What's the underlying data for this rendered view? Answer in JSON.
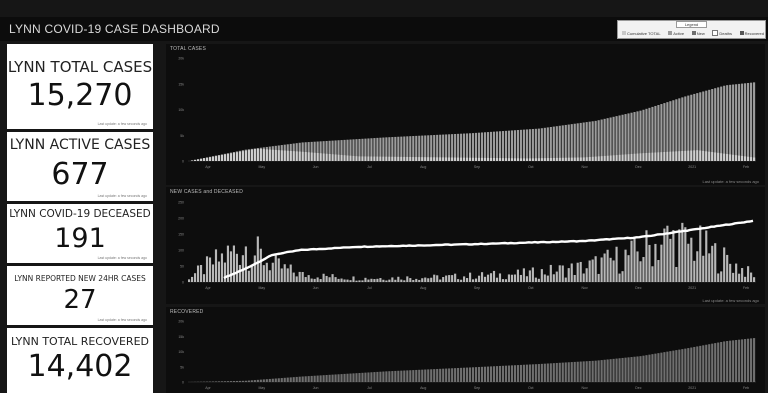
{
  "app": {
    "title": "LYNN COVID-19 CASE DASHBOARD"
  },
  "legend": {
    "title": "Legend",
    "items": [
      {
        "label": "Cumulative TOTAL",
        "color": "#c8c8c8"
      },
      {
        "label": "Active",
        "color": "#9a9a9a"
      },
      {
        "label": "New",
        "color": "#6e6e6e"
      },
      {
        "label": "Deaths",
        "color": "#ffffff"
      },
      {
        "label": "Recovered",
        "color": "#555555"
      }
    ]
  },
  "kpis": [
    {
      "label": "LYNN TOTAL CASES",
      "value": "15,270",
      "footnote": "Last update: a few seconds ago"
    },
    {
      "label": "LYNN ACTIVE CASES",
      "value": "677",
      "footnote": "Last update: a few seconds ago"
    },
    {
      "label": "LYNN COVID-19 DECEASED",
      "value": "191",
      "footnote": "Last update: a few seconds ago"
    },
    {
      "label": "LYNN REPORTED NEW 24HR CASES",
      "value": "27",
      "footnote": "Last update: a few seconds ago"
    },
    {
      "label": "LYNN TOTAL RECOVERED",
      "value": "14,402",
      "footnote": ""
    }
  ],
  "panels": [
    {
      "title": "TOTAL CASES",
      "footnote": "Last update: a few seconds ago"
    },
    {
      "title": "NEW CASES and DECEASED",
      "footnote": "Last update: a few seconds ago"
    },
    {
      "title": "RECOVERED",
      "footnote": ""
    }
  ],
  "chart_data": [
    {
      "type": "bar",
      "title": "TOTAL CASES",
      "x_ticks": [
        "Apr",
        "May",
        "Jun",
        "Jul",
        "Aug",
        "Sep",
        "Oct",
        "Nov",
        "Dec",
        "2021",
        "Feb"
      ],
      "y_ticks": [
        "0",
        "5k",
        "10k",
        "15k",
        "20k"
      ],
      "ylim": [
        0,
        20000
      ],
      "series": [
        {
          "name": "Cumulative TOTAL",
          "knots": [
            [
              0,
              0
            ],
            [
              0.1,
              2200
            ],
            [
              0.2,
              3600
            ],
            [
              0.35,
              4600
            ],
            [
              0.5,
              5400
            ],
            [
              0.62,
              6300
            ],
            [
              0.72,
              7800
            ],
            [
              0.8,
              9800
            ],
            [
              0.88,
              12600
            ],
            [
              0.95,
              14700
            ],
            [
              1.0,
              15270
            ]
          ]
        },
        {
          "name": "Active",
          "knots": [
            [
              0,
              0
            ],
            [
              0.12,
              2400
            ],
            [
              0.2,
              1800
            ],
            [
              0.3,
              900
            ],
            [
              0.45,
              700
            ],
            [
              0.6,
              500
            ],
            [
              0.7,
              700
            ],
            [
              0.8,
              1500
            ],
            [
              0.9,
              2100
            ],
            [
              1.0,
              677
            ]
          ]
        }
      ],
      "grid": false
    },
    {
      "type": "bar",
      "title": "NEW CASES and DECEASED",
      "x_ticks": [
        "Apr",
        "May",
        "Jun",
        "Jul",
        "Aug",
        "Sep",
        "Oct",
        "Nov",
        "Dec",
        "2021",
        "Feb"
      ],
      "y_ticks": [
        "0",
        "50",
        "100",
        "150",
        "200",
        "250"
      ],
      "ylim": [
        0,
        250
      ],
      "series": [
        {
          "name": "New",
          "knots": [
            [
              0,
              20
            ],
            [
              0.05,
              90
            ],
            [
              0.1,
              150
            ],
            [
              0.15,
              70
            ],
            [
              0.2,
              30
            ],
            [
              0.3,
              15
            ],
            [
              0.45,
              20
            ],
            [
              0.6,
              35
            ],
            [
              0.7,
              60
            ],
            [
              0.78,
              110
            ],
            [
              0.85,
              180
            ],
            [
              0.9,
              150
            ],
            [
              0.95,
              90
            ],
            [
              1.0,
              27
            ]
          ]
        },
        {
          "name": "Deaths",
          "knots": [
            [
              0.06,
              10
            ],
            [
              0.1,
              40
            ],
            [
              0.15,
              85
            ],
            [
              0.2,
              100
            ],
            [
              0.3,
              110
            ],
            [
              0.5,
              118
            ],
            [
              0.7,
              128
            ],
            [
              0.8,
              140
            ],
            [
              0.9,
              165
            ],
            [
              1.0,
              191
            ]
          ]
        }
      ],
      "grid": false
    },
    {
      "type": "bar",
      "title": "RECOVERED",
      "x_ticks": [
        "Apr",
        "May",
        "Jun",
        "Jul",
        "Aug",
        "Sep",
        "Oct",
        "Nov",
        "Dec",
        "2021",
        "Feb"
      ],
      "y_ticks": [
        "0",
        "5k",
        "10k",
        "15k",
        "20k"
      ],
      "ylim": [
        0,
        20000
      ],
      "series": [
        {
          "name": "Recovered",
          "knots": [
            [
              0,
              0
            ],
            [
              0.1,
              400
            ],
            [
              0.2,
              1800
            ],
            [
              0.35,
              3500
            ],
            [
              0.5,
              4800
            ],
            [
              0.62,
              5900
            ],
            [
              0.72,
              7000
            ],
            [
              0.8,
              8500
            ],
            [
              0.88,
              11000
            ],
            [
              0.95,
              13400
            ],
            [
              1.0,
              14402
            ]
          ]
        }
      ],
      "grid": false
    }
  ]
}
